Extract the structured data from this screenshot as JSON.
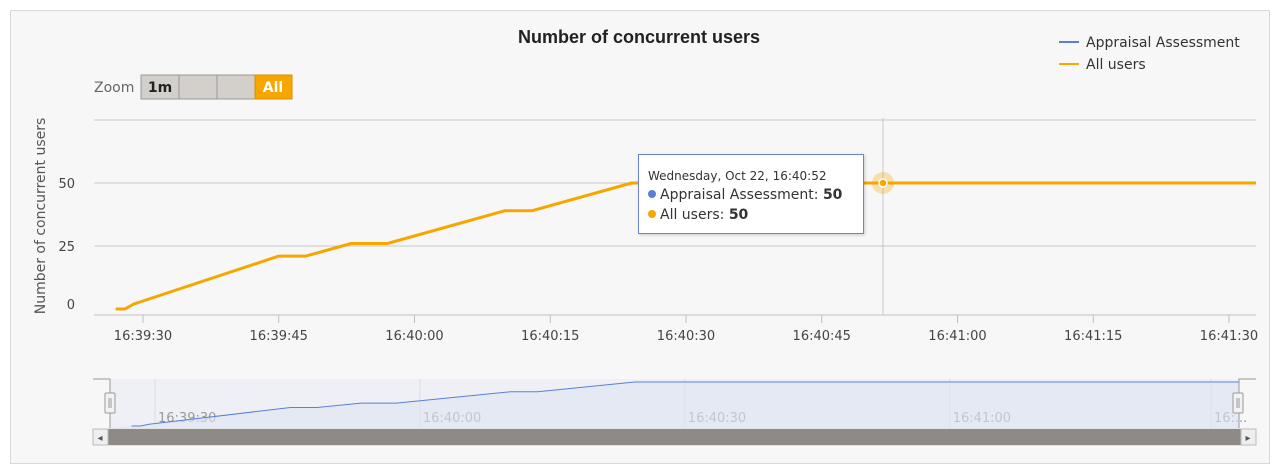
{
  "chart_data": {
    "type": "line",
    "title": "Number of concurrent users",
    "ylabel": "Number of concurrent users",
    "xlabel": "",
    "ylim": [
      0,
      75
    ],
    "yticks": [
      0,
      25,
      50
    ],
    "x_tick_labels": [
      "16:39:30",
      "16:39:45",
      "16:40:00",
      "16:40:15",
      "16:40:30",
      "16:40:45",
      "16:41:00",
      "16:41:15",
      "16:41:30"
    ],
    "grid": true,
    "legend_position": "top-right",
    "series": [
      {
        "name": "Appraisal Assessment",
        "color": "#5b7fd6",
        "x": [
          "16:39:27",
          "16:39:28",
          "16:39:29",
          "16:39:45",
          "16:39:48",
          "16:39:53",
          "16:39:57",
          "16:40:10",
          "16:40:13",
          "16:40:24",
          "16:41:33"
        ],
        "values": [
          0,
          0,
          2,
          21,
          21,
          26,
          26,
          39,
          39,
          50,
          50
        ]
      },
      {
        "name": "All users",
        "color": "#f7a600",
        "x": [
          "16:39:27",
          "16:39:28",
          "16:39:29",
          "16:39:45",
          "16:39:48",
          "16:39:53",
          "16:39:57",
          "16:40:10",
          "16:40:13",
          "16:40:24",
          "16:41:33"
        ],
        "values": [
          0,
          0,
          2,
          21,
          21,
          26,
          26,
          39,
          39,
          50,
          50
        ]
      }
    ],
    "navigator_tick_labels": [
      "16:39:30",
      "16:40:00",
      "16:40:30",
      "16:41:00",
      "16:..."
    ]
  },
  "zoom": {
    "label": "Zoom",
    "buttons": [
      "1m",
      "",
      "",
      "All"
    ],
    "selected": "All"
  },
  "tooltip": {
    "header": "Wednesday, Oct 22, 16:40:52",
    "rows": [
      {
        "label": "Appraisal Assessment:",
        "value": "50",
        "color": "#5b7fd6"
      },
      {
        "label": "All users:",
        "value": "50",
        "color": "#f7a600"
      }
    ]
  },
  "scrollbar": {
    "left_arrow": "◂",
    "right_arrow": "▸"
  }
}
